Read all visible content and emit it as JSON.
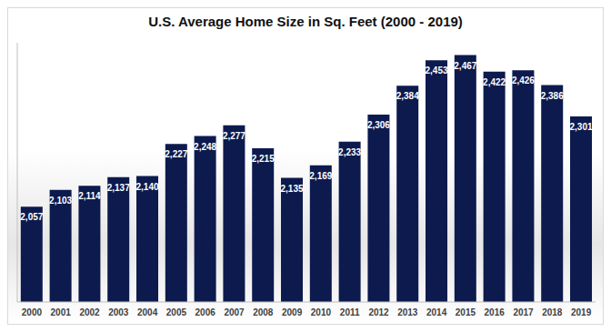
{
  "chart_data": {
    "type": "bar",
    "title": "U.S. Average Home Size in Sq. Feet (2000 - 2019)",
    "categories": [
      "2000",
      "2001",
      "2002",
      "2003",
      "2004",
      "2005",
      "2006",
      "2007",
      "2008",
      "2009",
      "2010",
      "2011",
      "2012",
      "2013",
      "2014",
      "2015",
      "2016",
      "2017",
      "2018",
      "2019"
    ],
    "values": [
      2057,
      2103,
      2114,
      2137,
      2140,
      2227,
      2248,
      2277,
      2215,
      2135,
      2169,
      2233,
      2306,
      2384,
      2453,
      2467,
      2422,
      2426,
      2386,
      2301
    ],
    "value_labels": [
      "2,057",
      "2,103",
      "2,114",
      "2,137",
      "2,140",
      "2,227",
      "2,248",
      "2,277",
      "2,215",
      "2,135",
      "2,169",
      "2,233",
      "2,306",
      "2,384",
      "2,453",
      "2,467",
      "2,422",
      "2,426",
      "2,386",
      "2,301"
    ],
    "color": "#0c1a4e",
    "ylim": [
      1800,
      2500
    ],
    "grid": false,
    "data_labels": true,
    "tick_labels": "x"
  }
}
